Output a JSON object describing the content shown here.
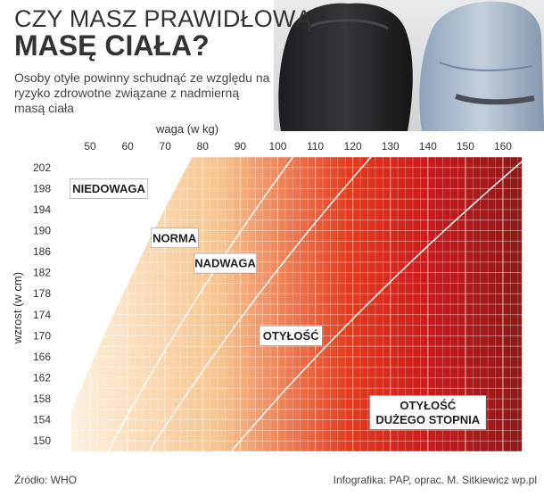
{
  "header": {
    "title_line1": "CZY MASZ PRAWIDŁOWĄ",
    "title_line2": "MASĘ CIAŁA?",
    "subtitle": "Osoby otyłe powinny schudnąć ze względu na ryzyko zdrowotne związane z nadmierną masą ciała"
  },
  "footer": {
    "source": "Źródło: WHO",
    "credit": "Infografika: PAP, oprac. M. Sitkiewicz wp.pl"
  },
  "colors": {
    "light_cream": "#fdf1de",
    "light_orange": "#f6c48e",
    "red": "#e23a1e",
    "deep_red": "#c81a1c",
    "dark_red": "#8a1a18"
  },
  "chart_data": {
    "type": "heatmap",
    "xlabel": "waga (w kg)",
    "ylabel": "wzrost (w cm)",
    "xlim": [
      45,
      165
    ],
    "ylim": [
      148,
      204
    ],
    "x_ticks": [
      50,
      60,
      70,
      80,
      90,
      100,
      110,
      120,
      130,
      140,
      150,
      160
    ],
    "y_ticks": [
      202,
      198,
      194,
      190,
      186,
      182,
      178,
      174,
      170,
      166,
      162,
      158,
      154,
      150
    ],
    "bmi_boundaries": [
      18.5,
      25,
      30,
      40
    ],
    "zones": [
      {
        "label_lines": [
          "NIEDOWAGA"
        ],
        "x": 55,
        "y": 198
      },
      {
        "label_lines": [
          "NORMA"
        ],
        "x": 72.5,
        "y": 188.6
      },
      {
        "label_lines": [
          "NADWAGA"
        ],
        "x": 86,
        "y": 183.8
      },
      {
        "label_lines": [
          "OTYŁOŚĆ"
        ],
        "x": 103.5,
        "y": 170
      },
      {
        "label_lines": [
          "OTYŁOŚĆ",
          "DUŻEGO STOPNIA"
        ],
        "x": 140,
        "y": 155.4
      }
    ]
  }
}
